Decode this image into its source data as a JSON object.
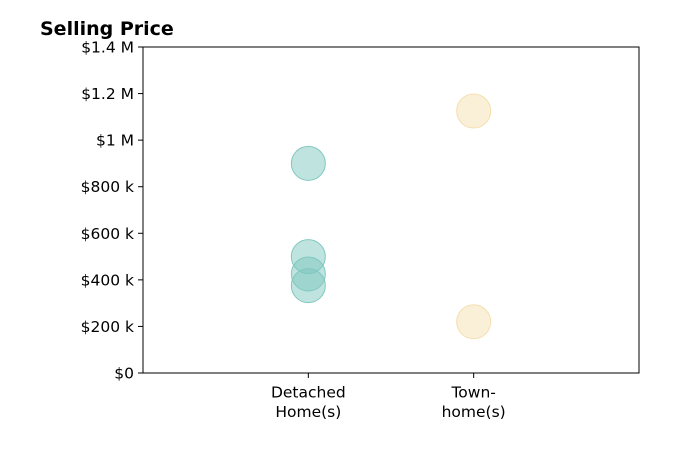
{
  "chart_data": {
    "type": "scatter",
    "title": "Selling Price",
    "xlabel": "",
    "ylabel": "",
    "categories": [
      "Detached\nHome(s)",
      "Town-\nhome(s)"
    ],
    "xlim": [
      -1,
      2
    ],
    "ylim": [
      0,
      1400000
    ],
    "yticks": [
      {
        "value": 0,
        "label": "$0"
      },
      {
        "value": 200000,
        "label": "$200 k"
      },
      {
        "value": 400000,
        "label": "$400 k"
      },
      {
        "value": 600000,
        "label": "$600 k"
      },
      {
        "value": 800000,
        "label": "$800 k"
      },
      {
        "value": 1000000,
        "label": "$1 M"
      },
      {
        "value": 1200000,
        "label": "$1.2 M"
      },
      {
        "value": 1400000,
        "label": "$1.4 M"
      }
    ],
    "grid": false,
    "legend": "none",
    "series": [
      {
        "category_index": 0,
        "color": "#80c8c0",
        "values": [
          900000,
          500000,
          425000,
          375000
        ]
      },
      {
        "category_index": 1,
        "color": "#f5dfb0",
        "values": [
          1125000,
          220000
        ]
      }
    ]
  }
}
